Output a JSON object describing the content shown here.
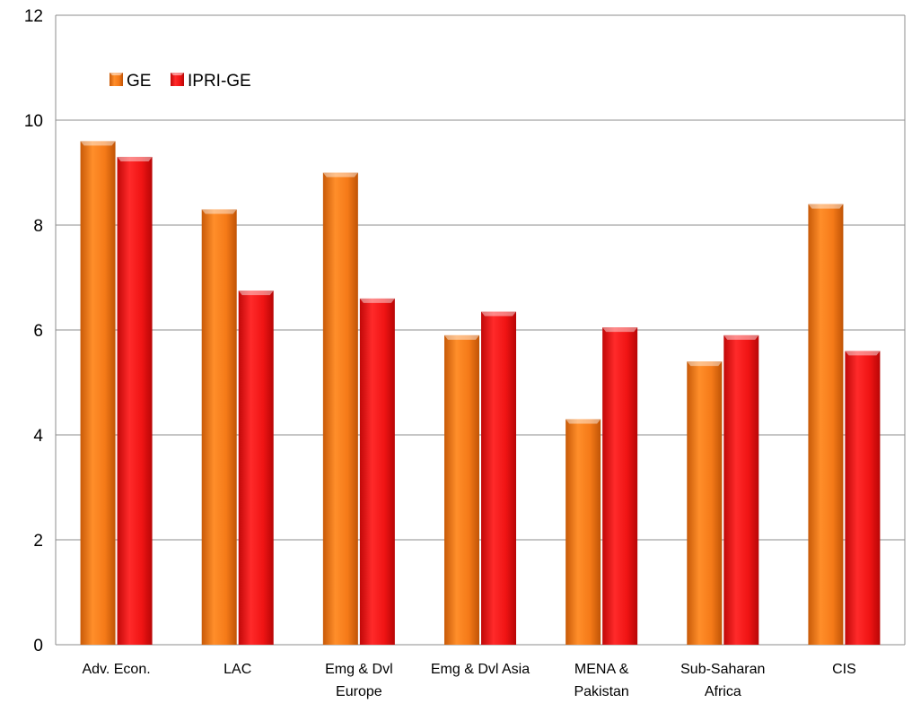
{
  "chart_data": {
    "type": "bar",
    "categories": [
      [
        "Adv. Econ."
      ],
      [
        "LAC"
      ],
      [
        "Emg & Dvl",
        "Europe"
      ],
      [
        "Emg & Dvl Asia"
      ],
      [
        "MENA &",
        "Pakistan"
      ],
      [
        "Sub-Saharan",
        "Africa"
      ],
      [
        "CIS"
      ]
    ],
    "series": [
      {
        "name": "GE",
        "color": "#F07814",
        "values": [
          9.6,
          8.3,
          9.0,
          5.9,
          4.3,
          5.4,
          8.4
        ]
      },
      {
        "name": "IPRI-GE",
        "color": "#EE1111",
        "values": [
          9.3,
          6.75,
          6.6,
          6.35,
          6.05,
          5.9,
          5.6
        ]
      }
    ],
    "ylim": [
      0,
      12
    ],
    "yticks": [
      0,
      2,
      4,
      6,
      8,
      10,
      12
    ],
    "grid": true,
    "legend_position": "top-left"
  }
}
